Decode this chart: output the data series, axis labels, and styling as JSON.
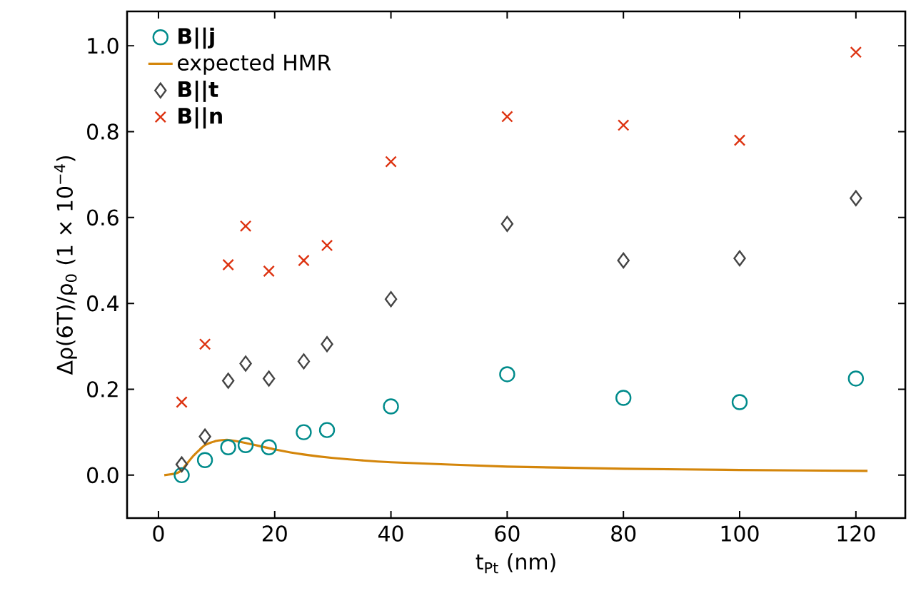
{
  "chart_data": {
    "type": "scatter",
    "xlabel": "t$_{Pt}$ (nm)",
    "ylabel": "Δρ(6T)/ρ$_{0}$ (1 × 10$^{−4}$)",
    "xlim": [
      -5.4,
      128.5
    ],
    "ylim": [
      -0.1,
      1.08
    ],
    "xticks": [
      0,
      20,
      40,
      60,
      80,
      100,
      120
    ],
    "yticks": [
      {
        "value": 0,
        "label": "0.0"
      },
      {
        "value": 0.2,
        "label": "0.2"
      },
      {
        "value": 0.4,
        "label": "0.4"
      },
      {
        "value": 0.6,
        "label": "0.6"
      },
      {
        "value": 0.8,
        "label": "0.8"
      },
      {
        "value": 1.0,
        "label": "1.0"
      }
    ],
    "legend": "top left",
    "grid": false,
    "series": [
      {
        "name": "B||j",
        "marker": "circle",
        "color": "#008b8b",
        "x": [
          4,
          8,
          12,
          15,
          19,
          25,
          29,
          40,
          60,
          80,
          100,
          120
        ],
        "values": [
          0.0,
          0.035,
          0.065,
          0.07,
          0.065,
          0.1,
          0.105,
          0.16,
          0.235,
          0.18,
          0.17,
          0.225
        ]
      },
      {
        "name": "expected HMR",
        "type": "line",
        "marker": "none",
        "line_style": "solid",
        "color": "#d4860b",
        "x": [
          1,
          3,
          4,
          6,
          8,
          10,
          12,
          15,
          20,
          25,
          30,
          40,
          60,
          80,
          100,
          122
        ],
        "values": [
          0.0,
          0.004,
          0.012,
          0.045,
          0.07,
          0.08,
          0.082,
          0.075,
          0.06,
          0.048,
          0.04,
          0.03,
          0.02,
          0.015,
          0.012,
          0.01
        ]
      },
      {
        "name": "B||t",
        "marker": "diamond",
        "color": "#444444",
        "x": [
          4,
          8,
          12,
          15,
          19,
          25,
          29,
          40,
          60,
          80,
          100,
          120
        ],
        "values": [
          0.025,
          0.09,
          0.22,
          0.26,
          0.225,
          0.265,
          0.305,
          0.41,
          0.585,
          0.5,
          0.505,
          0.645
        ]
      },
      {
        "name": "B||n",
        "marker": "cross",
        "color": "#dd3311",
        "x": [
          4,
          8,
          12,
          15,
          19,
          25,
          29,
          40,
          60,
          80,
          100,
          120
        ],
        "values": [
          0.17,
          0.305,
          0.49,
          0.58,
          0.475,
          0.5,
          0.535,
          0.73,
          0.835,
          0.815,
          0.78,
          0.985
        ]
      }
    ]
  }
}
